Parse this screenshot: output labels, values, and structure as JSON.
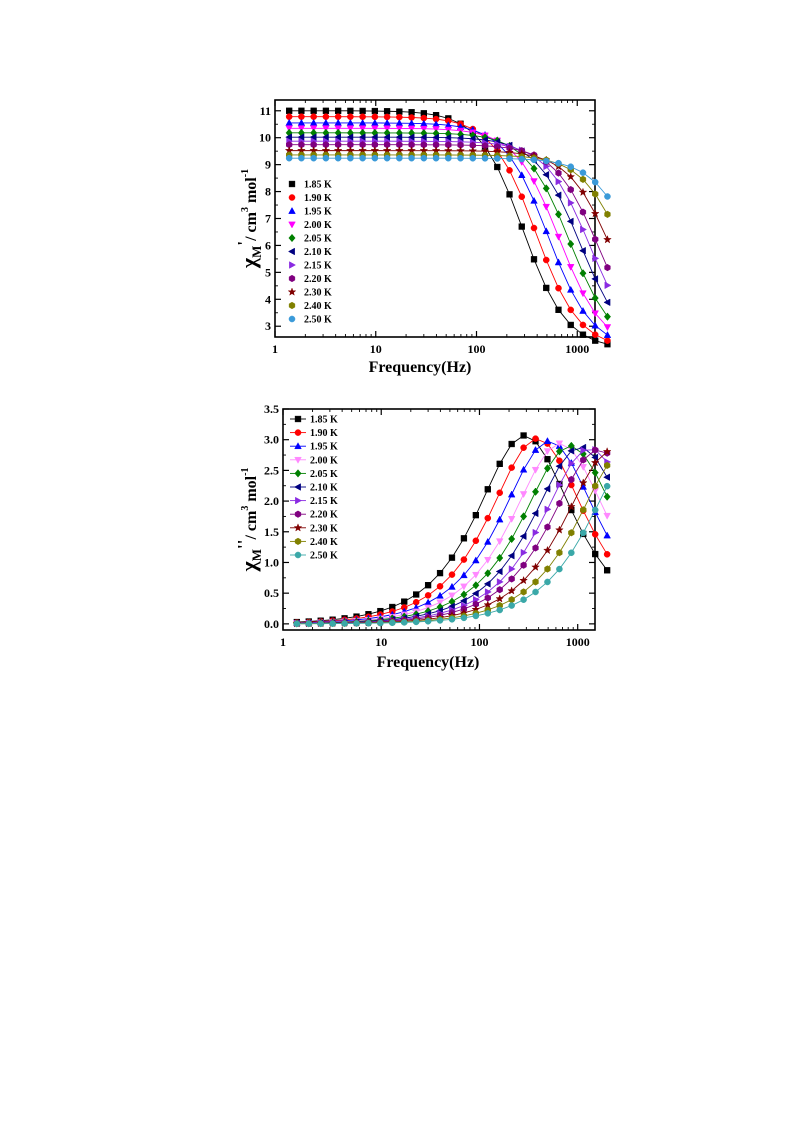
{
  "chart_data": [
    {
      "type": "line",
      "xlabel": "Frequency(Hz)",
      "ylabel": {
        "base": "χ",
        "sub": "M",
        "prime": "'",
        "units": "/ cm",
        "sup1": "3",
        "mid": " mol",
        "sup2": "-1"
      },
      "x_scale": "log",
      "xlim": [
        1,
        1500
      ],
      "ylim": [
        2.6,
        11.4
      ],
      "x_ticks": [
        1,
        10,
        100,
        1000
      ],
      "x_tick_labels": [
        "1",
        "10",
        "100",
        "1000"
      ],
      "y_ticks": [
        3,
        4,
        5,
        6,
        7,
        8,
        9,
        10,
        11
      ],
      "y_tick_labels": [
        "3",
        "4",
        "5",
        "6",
        "7",
        "8",
        "9",
        "10",
        "11"
      ],
      "legend_position": "left",
      "grid": false,
      "series": [
        {
          "name": "1.85 K",
          "color": "#000000",
          "marker": "square",
          "chi0": 11.0,
          "chiInf": 2.15,
          "tau": 0.00055
        },
        {
          "name": "1.90 K",
          "color": "#ff0000",
          "marker": "circle",
          "chi0": 10.78,
          "chiInf": 2.15,
          "tau": 0.00041
        },
        {
          "name": "1.95 K",
          "color": "#0000ff",
          "marker": "triangle-up",
          "chi0": 10.55,
          "chiInf": 2.15,
          "tau": 0.00031
        },
        {
          "name": "2.00 K",
          "color": "#ff00ff",
          "marker": "triangle-down",
          "chi0": 10.35,
          "chiInf": 2.15,
          "tau": 0.00024
        },
        {
          "name": "2.05 K",
          "color": "#008000",
          "marker": "diamond",
          "chi0": 10.18,
          "chiInf": 2.15,
          "tau": 0.00019
        },
        {
          "name": "2.10 K",
          "color": "#000080",
          "marker": "triangle-left",
          "chi0": 10.02,
          "chiInf": 2.15,
          "tau": 0.00015
        },
        {
          "name": "2.15 K",
          "color": "#8a2be2",
          "marker": "triangle-right",
          "chi0": 9.87,
          "chiInf": 2.15,
          "tau": 0.00012
        },
        {
          "name": "2.20 K",
          "color": "#800080",
          "marker": "hexagon",
          "chi0": 9.74,
          "chiInf": 2.15,
          "tau": 9.8e-05
        },
        {
          "name": "2.30 K",
          "color": "#800000",
          "marker": "star",
          "chi0": 9.52,
          "chiInf": 2.15,
          "tau": 7.2e-05
        },
        {
          "name": "2.40 K",
          "color": "#808000",
          "marker": "hexagon",
          "chi0": 9.36,
          "chiInf": 2.15,
          "tau": 5.3e-05
        },
        {
          "name": "2.50 K",
          "color": "#3a9ad9",
          "marker": "circle",
          "chi0": 9.24,
          "chiInf": 2.15,
          "tau": 4e-05
        }
      ]
    },
    {
      "type": "line",
      "xlabel": "Frequency(Hz)",
      "ylabel": {
        "base": "χ",
        "sub": "M",
        "prime": "''",
        "units": "/ cm",
        "sup1": "3",
        "mid": " mol",
        "sup2": "-1"
      },
      "x_scale": "log",
      "xlim": [
        1,
        1500
      ],
      "ylim": [
        -0.1,
        3.5
      ],
      "x_ticks": [
        1,
        10,
        100,
        1000
      ],
      "x_tick_labels": [
        "1",
        "10",
        "100",
        "1000"
      ],
      "y_ticks": [
        0.0,
        0.5,
        1.0,
        1.5,
        2.0,
        2.5,
        3.0,
        3.5
      ],
      "y_tick_labels": [
        "0.0",
        "0.5",
        "1.0",
        "1.5",
        "2.0",
        "2.5",
        "3.0",
        "3.5"
      ],
      "legend_position": "top-left",
      "grid": false,
      "series": [
        {
          "name": "1.85 K",
          "color": "#000000",
          "marker": "square",
          "peak": 3.07,
          "tau": 0.00055
        },
        {
          "name": "1.90 K",
          "color": "#ff0000",
          "marker": "circle",
          "peak": 3.02,
          "tau": 0.00041
        },
        {
          "name": "1.95 K",
          "color": "#0000ff",
          "marker": "triangle-up",
          "peak": 2.98,
          "tau": 0.00031
        },
        {
          "name": "2.00 K",
          "color": "#ff88ff",
          "marker": "triangle-down",
          "peak": 2.94,
          "tau": 0.00024
        },
        {
          "name": "2.05 K",
          "color": "#008000",
          "marker": "diamond",
          "peak": 2.9,
          "tau": 0.00019
        },
        {
          "name": "2.10 K",
          "color": "#000080",
          "marker": "triangle-left",
          "peak": 2.88,
          "tau": 0.00015
        },
        {
          "name": "2.15 K",
          "color": "#8a2be2",
          "marker": "triangle-right",
          "peak": 2.86,
          "tau": 0.00012
        },
        {
          "name": "2.20 K",
          "color": "#800080",
          "marker": "hexagon",
          "peak": 2.84,
          "tau": 9.8e-05
        },
        {
          "name": "2.30 K",
          "color": "#800000",
          "marker": "star",
          "peak": 2.82,
          "tau": 7.2e-05
        },
        {
          "name": "2.40 K",
          "color": "#808000",
          "marker": "hexagon",
          "peak": 2.8,
          "tau": 5.3e-05
        },
        {
          "name": "2.50 K",
          "color": "#3aa8a8",
          "marker": "circle",
          "peak": 2.8,
          "tau": 4e-05
        }
      ]
    }
  ]
}
